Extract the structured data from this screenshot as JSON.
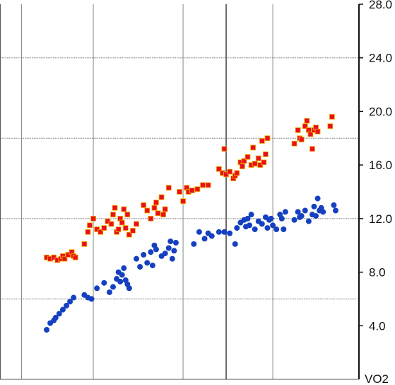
{
  "chart_data": {
    "type": "scatter",
    "title": "",
    "ylabel": "VO2",
    "xlabel": "",
    "xlim": [
      0,
      10
    ],
    "ylim": [
      0,
      28
    ],
    "y_ticks": [
      "4.0",
      "8.0",
      "12.0",
      "16.0",
      "20.0",
      "24.0",
      "28.0"
    ],
    "grid": true,
    "colors": {
      "red_series": "#e8101a",
      "red_marker_border": "#f2b400",
      "blue_series": "#1540c0"
    },
    "series": [
      {
        "marker": "square",
        "color": "#e8101a",
        "points": [
          [
            1.3,
            9.1
          ],
          [
            1.4,
            9.0
          ],
          [
            1.5,
            9.1
          ],
          [
            1.6,
            8.9
          ],
          [
            1.7,
            9.0
          ],
          [
            1.75,
            9.2
          ],
          [
            1.8,
            9.0
          ],
          [
            1.9,
            9.3
          ],
          [
            2.0,
            9.5
          ],
          [
            2.05,
            9.2
          ],
          [
            2.1,
            9.1
          ],
          [
            2.35,
            10.1
          ],
          [
            2.45,
            11.0
          ],
          [
            2.5,
            11.5
          ],
          [
            2.6,
            12.0
          ],
          [
            2.7,
            11.2
          ],
          [
            2.8,
            11.0
          ],
          [
            2.9,
            11.3
          ],
          [
            3.0,
            11.8
          ],
          [
            3.1,
            11.6
          ],
          [
            3.15,
            12.3
          ],
          [
            3.2,
            12.8
          ],
          [
            3.25,
            11.0
          ],
          [
            3.3,
            11.2
          ],
          [
            3.35,
            12.0
          ],
          [
            3.4,
            11.7
          ],
          [
            3.45,
            12.7
          ],
          [
            3.5,
            11.3
          ],
          [
            3.55,
            12.3
          ],
          [
            3.6,
            10.8
          ],
          [
            3.7,
            11.1
          ],
          [
            3.8,
            11.6
          ],
          [
            4.0,
            13.0
          ],
          [
            4.1,
            12.6
          ],
          [
            4.2,
            12.0
          ],
          [
            4.3,
            12.8
          ],
          [
            4.35,
            13.2
          ],
          [
            4.4,
            12.4
          ],
          [
            4.5,
            13.6
          ],
          [
            4.55,
            12.3
          ],
          [
            4.6,
            12.7
          ],
          [
            4.7,
            14.3
          ],
          [
            5.0,
            14.0
          ],
          [
            5.1,
            13.3
          ],
          [
            5.2,
            14.3
          ],
          [
            5.25,
            14.0
          ],
          [
            5.35,
            14.1
          ],
          [
            5.5,
            14.2
          ],
          [
            5.65,
            14.5
          ],
          [
            5.8,
            14.5
          ],
          [
            6.1,
            15.7
          ],
          [
            6.2,
            15.4
          ],
          [
            6.25,
            17.2
          ],
          [
            6.3,
            15.3
          ],
          [
            6.4,
            15.5
          ],
          [
            6.5,
            15.0
          ],
          [
            6.55,
            15.2
          ],
          [
            6.6,
            15.4
          ],
          [
            6.7,
            16.2
          ],
          [
            6.75,
            15.9
          ],
          [
            6.8,
            16.3
          ],
          [
            6.9,
            16.6
          ],
          [
            7.0,
            16.0
          ],
          [
            7.05,
            17.3
          ],
          [
            7.1,
            16.1
          ],
          [
            7.2,
            16.5
          ],
          [
            7.25,
            16.0
          ],
          [
            7.3,
            17.8
          ],
          [
            7.35,
            16.2
          ],
          [
            7.4,
            16.8
          ],
          [
            7.45,
            18.0
          ],
          [
            8.2,
            17.6
          ],
          [
            8.3,
            18.6
          ],
          [
            8.35,
            18.0
          ],
          [
            8.4,
            17.9
          ],
          [
            8.5,
            18.9
          ],
          [
            8.55,
            19.3
          ],
          [
            8.6,
            18.6
          ],
          [
            8.65,
            18.3
          ],
          [
            8.7,
            17.2
          ],
          [
            8.75,
            18.6
          ],
          [
            8.8,
            18.8
          ],
          [
            8.85,
            18.5
          ],
          [
            9.2,
            18.9
          ],
          [
            9.25,
            19.6
          ]
        ]
      },
      {
        "marker": "circle",
        "color": "#1540c0",
        "points": [
          [
            1.3,
            3.7
          ],
          [
            1.4,
            4.2
          ],
          [
            1.5,
            4.4
          ],
          [
            1.55,
            4.6
          ],
          [
            1.65,
            4.9
          ],
          [
            1.75,
            5.2
          ],
          [
            1.85,
            5.5
          ],
          [
            1.95,
            5.8
          ],
          [
            2.05,
            6.1
          ],
          [
            2.35,
            6.3
          ],
          [
            2.45,
            6.1
          ],
          [
            2.55,
            6.0
          ],
          [
            2.7,
            6.8
          ],
          [
            2.9,
            7.2
          ],
          [
            3.05,
            6.5
          ],
          [
            3.15,
            6.9
          ],
          [
            3.25,
            7.5
          ],
          [
            3.3,
            8.0
          ],
          [
            3.35,
            7.3
          ],
          [
            3.4,
            7.8
          ],
          [
            3.45,
            8.3
          ],
          [
            3.5,
            7.4
          ],
          [
            3.55,
            7.1
          ],
          [
            3.6,
            6.8
          ],
          [
            3.8,
            9.0
          ],
          [
            3.9,
            8.4
          ],
          [
            4.0,
            9.3
          ],
          [
            4.1,
            8.7
          ],
          [
            4.2,
            9.5
          ],
          [
            4.25,
            8.5
          ],
          [
            4.3,
            10.0
          ],
          [
            4.35,
            9.7
          ],
          [
            4.5,
            9.2
          ],
          [
            4.6,
            9.4
          ],
          [
            4.7,
            9.8
          ],
          [
            4.75,
            10.3
          ],
          [
            4.8,
            9.0
          ],
          [
            4.85,
            9.6
          ],
          [
            4.9,
            10.2
          ],
          [
            5.4,
            10.1
          ],
          [
            5.55,
            11.0
          ],
          [
            5.7,
            10.5
          ],
          [
            5.8,
            10.9
          ],
          [
            5.9,
            10.7
          ],
          [
            6.1,
            11.0
          ],
          [
            6.25,
            11.0
          ],
          [
            6.4,
            10.9
          ],
          [
            6.55,
            10.1
          ],
          [
            6.6,
            11.3
          ],
          [
            6.7,
            11.7
          ],
          [
            6.8,
            11.9
          ],
          [
            6.85,
            11.4
          ],
          [
            6.9,
            12.0
          ],
          [
            6.95,
            11.5
          ],
          [
            7.0,
            12.3
          ],
          [
            7.1,
            11.2
          ],
          [
            7.2,
            11.8
          ],
          [
            7.3,
            11.6
          ],
          [
            7.4,
            12.1
          ],
          [
            7.45,
            11.3
          ],
          [
            7.5,
            11.9
          ],
          [
            7.55,
            12.0
          ],
          [
            7.6,
            11.5
          ],
          [
            7.7,
            11.2
          ],
          [
            7.8,
            12.3
          ],
          [
            7.85,
            12.0
          ],
          [
            7.9,
            11.2
          ],
          [
            7.95,
            12.5
          ],
          [
            8.2,
            11.9
          ],
          [
            8.3,
            12.5
          ],
          [
            8.35,
            12.1
          ],
          [
            8.4,
            12.2
          ],
          [
            8.5,
            12.6
          ],
          [
            8.6,
            11.8
          ],
          [
            8.7,
            12.3
          ],
          [
            8.75,
            12.9
          ],
          [
            8.8,
            12.2
          ],
          [
            8.85,
            13.5
          ],
          [
            8.9,
            12.6
          ],
          [
            8.95,
            12.8
          ],
          [
            9.0,
            12.5
          ],
          [
            9.3,
            13.0
          ],
          [
            9.35,
            12.6
          ]
        ]
      }
    ]
  }
}
